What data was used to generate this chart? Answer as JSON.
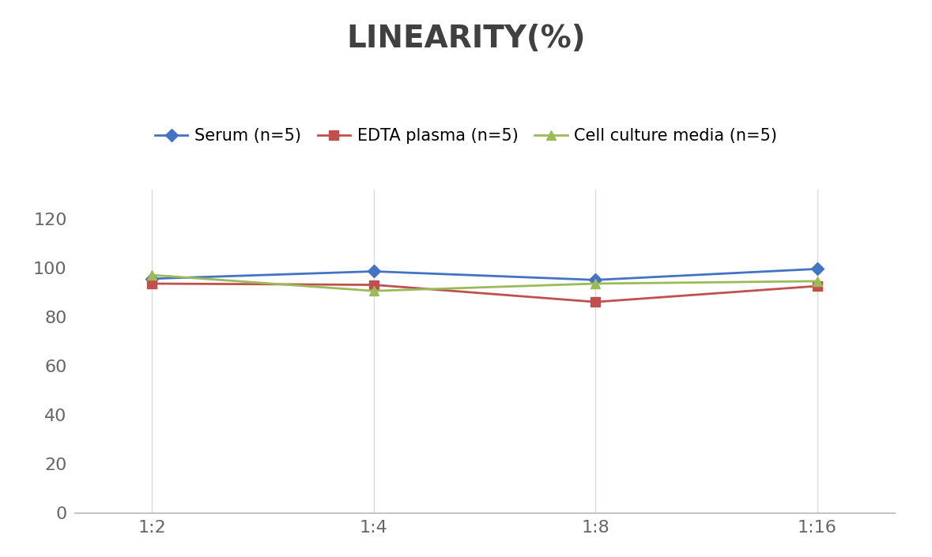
{
  "title": "LINEARITY(%)",
  "x_labels": [
    "1:2",
    "1:4",
    "1:8",
    "1:16"
  ],
  "x_positions": [
    0,
    1,
    2,
    3
  ],
  "series": [
    {
      "label": "Serum (n=5)",
      "values": [
        95.5,
        98.5,
        95.0,
        99.5
      ],
      "color": "#4472C4",
      "marker": "D",
      "markersize": 8,
      "linewidth": 2
    },
    {
      "label": "EDTA plasma (n=5)",
      "values": [
        93.5,
        93.0,
        86.0,
        92.5
      ],
      "color": "#C0504D",
      "marker": "s",
      "markersize": 8,
      "linewidth": 2
    },
    {
      "label": "Cell culture media (n=5)",
      "values": [
        97.0,
        90.5,
        93.5,
        94.5
      ],
      "color": "#9BBB59",
      "marker": "^",
      "markersize": 9,
      "linewidth": 2
    }
  ],
  "ylim": [
    0,
    132
  ],
  "yticks": [
    0,
    20,
    40,
    60,
    80,
    100,
    120
  ],
  "title_fontsize": 28,
  "tick_fontsize": 16,
  "legend_fontsize": 15,
  "background_color": "#ffffff",
  "grid_color": "#d9d9d9",
  "title_color": "#404040"
}
